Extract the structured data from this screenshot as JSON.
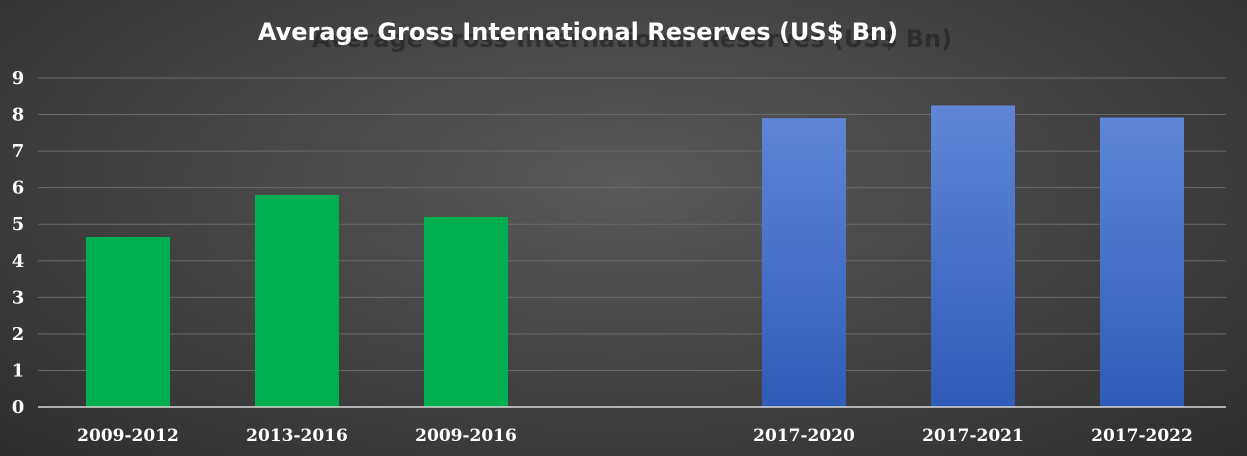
{
  "chart_data": {
    "type": "bar",
    "title": "Average Gross International Reserves (US$ Bn)",
    "xlabel": "",
    "ylabel": "",
    "ylim": [
      0,
      9
    ],
    "yticks": [
      0,
      1,
      2,
      3,
      4,
      5,
      6,
      7,
      8,
      9
    ],
    "grid": true,
    "legend": "none",
    "categories": [
      "2009-2012",
      "2013-2016",
      "2009-2016",
      "2017-2020",
      "2017-2021",
      "2017-2022"
    ],
    "values": [
      4.65,
      5.8,
      5.2,
      7.9,
      8.25,
      7.92
    ],
    "bar_colors": [
      "#00b050",
      "#00b050",
      "#00b050",
      "#4472c4",
      "#4472c4",
      "#4472c4"
    ]
  }
}
